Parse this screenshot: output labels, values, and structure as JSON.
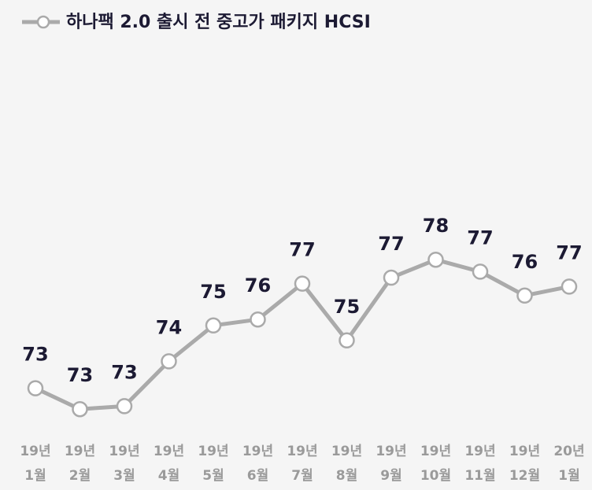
{
  "chart_data": {
    "type": "line",
    "categories": [
      [
        "19년",
        "1월"
      ],
      [
        "19년",
        "2월"
      ],
      [
        "19년",
        "3월"
      ],
      [
        "19년",
        "4월"
      ],
      [
        "19년",
        "5월"
      ],
      [
        "19년",
        "6월"
      ],
      [
        "19년",
        "7월"
      ],
      [
        "19년",
        "8월"
      ],
      [
        "19년",
        "9월"
      ],
      [
        "19년",
        "10월"
      ],
      [
        "19년",
        "11월"
      ],
      [
        "19년",
        "12월"
      ],
      [
        "20년",
        "1월"
      ]
    ],
    "series": [
      {
        "name": "하나팩 2.0 출시 전 중고가 패키지 HCSI",
        "color": "#aaaaaa",
        "values": [
          73.3,
          72.6,
          72.7,
          74.2,
          75.4,
          75.6,
          76.8,
          74.9,
          77.0,
          77.6,
          77.2,
          76.4,
          76.7
        ],
        "value_labels": [
          "73",
          "73",
          "73",
          "74",
          "75",
          "76",
          "77",
          "75",
          "77",
          "78",
          "77",
          "76",
          "77"
        ]
      }
    ],
    "ylim": [
      70,
      80
    ],
    "legend": "top-left"
  }
}
